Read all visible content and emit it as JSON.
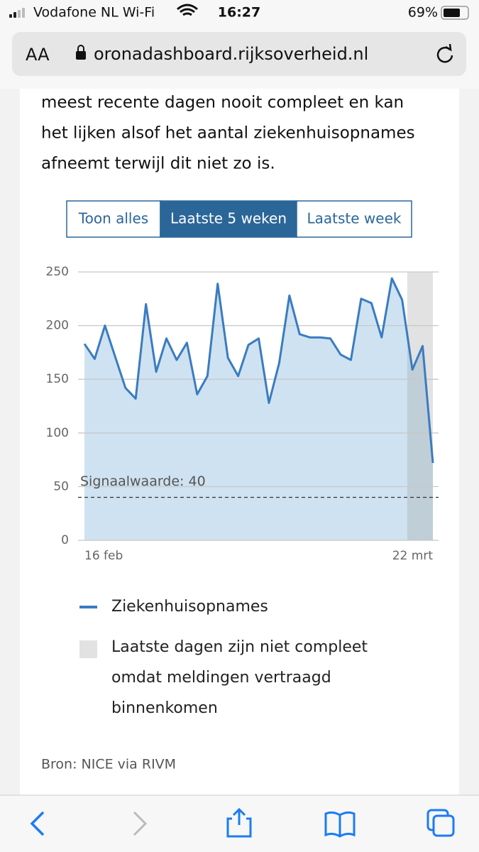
{
  "status_bar": {
    "carrier": "Vodafone NL Wi-Fi",
    "time": "16:27",
    "battery": "69%"
  },
  "browser": {
    "text_size": "AA",
    "url": "oronadashboard.rijksoverheid.nl"
  },
  "intro_lines": [
    "meest recente dagen nooit compleet en kan",
    "het lijken alsof het aantal ziekenhuisopnames",
    "afneemt terwijl dit niet zo is."
  ],
  "tabs": [
    "Toon alles",
    "Laatste 5 weken",
    "Laatste week"
  ],
  "active_tab": 1,
  "chart_data": {
    "type": "line",
    "categories": [
      "16 feb",
      null,
      null,
      null,
      null,
      null,
      null,
      null,
      null,
      null,
      null,
      null,
      null,
      null,
      null,
      null,
      null,
      null,
      null,
      null,
      null,
      null,
      null,
      null,
      null,
      null,
      null,
      null,
      null,
      null,
      null,
      null,
      null,
      null,
      "22 mrt"
    ],
    "series": [
      {
        "name": "Ziekenhuisopnames",
        "color": "#3a7cc0",
        "fill": "#cfe2f1",
        "values": [
          183,
          169,
          200,
          171,
          142,
          132,
          220,
          157,
          188,
          168,
          184,
          136,
          153,
          239,
          170,
          153,
          182,
          188,
          128,
          165,
          228,
          192,
          189,
          189,
          188,
          173,
          168,
          225,
          221,
          189,
          244,
          224,
          159,
          181,
          72
        ]
      }
    ],
    "ylim": [
      0,
      250
    ],
    "yticks": [
      0,
      50,
      100,
      150,
      200,
      250
    ],
    "grid": true,
    "threshold": {
      "value": 40,
      "label": "Signaalwaarde: 40"
    },
    "shaded_region": {
      "name": "Laatste dagen zijn niet compleet omdat meldingen vertraagd binnenkomen",
      "color": "#a0a0a0",
      "x": [
        31.5,
        34
      ]
    },
    "source": "Bron: NICE via RIVM"
  }
}
